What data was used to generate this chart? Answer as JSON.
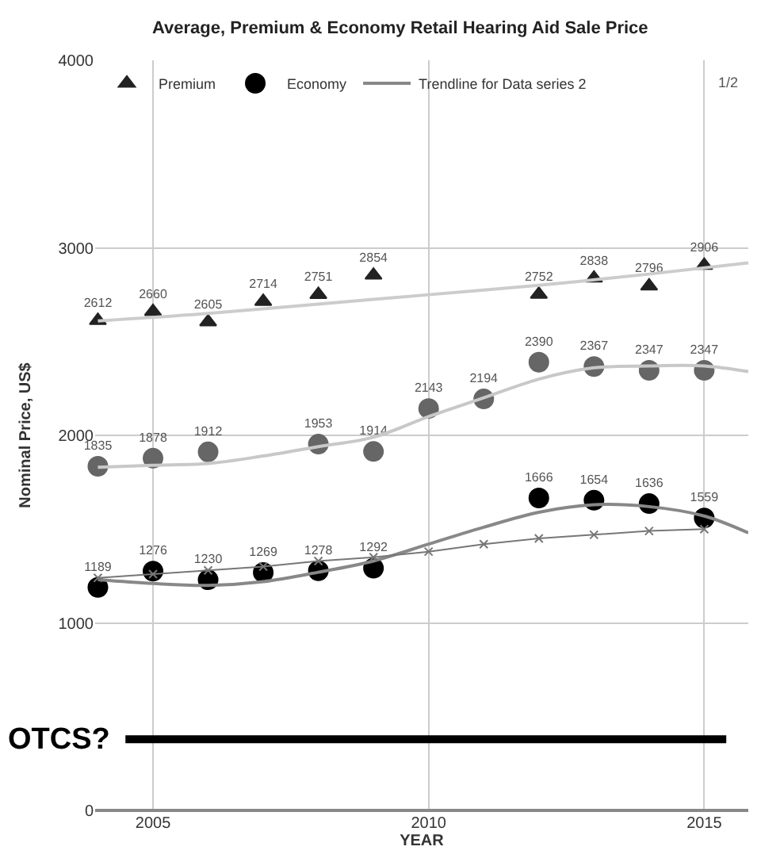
{
  "chart_data": {
    "type": "line",
    "title": "Average, Premium & Economy Retail Hearing Aid Sale Price",
    "xlabel": "YEAR",
    "ylabel": "Nominal Price, US$",
    "x": [
      2004,
      2005,
      2006,
      2007,
      2008,
      2009,
      2010,
      2011,
      2012,
      2013,
      2014,
      2015
    ],
    "series": [
      {
        "name": "Premium",
        "type": "scatter",
        "marker": "triangle",
        "color": "#222222",
        "values": [
          2612,
          2660,
          2605,
          2714,
          2751,
          2854,
          null,
          null,
          2752,
          2838,
          2796,
          2906
        ],
        "value_labels": [
          "2612",
          "2660",
          "2605",
          "2714",
          "2751",
          "2854",
          null,
          null,
          "2752",
          "2838",
          "2796",
          "2906"
        ]
      },
      {
        "name": "Economy",
        "type": "scatter",
        "marker": "circle",
        "color": "#000000",
        "values": [
          1189,
          1276,
          1230,
          1269,
          1278,
          1292,
          null,
          null,
          1666,
          1654,
          1636,
          1559
        ],
        "value_labels": [
          "1189",
          "1276",
          "1230",
          "1269",
          "1278",
          "1292",
          null,
          null,
          "1666",
          "1654",
          "1636",
          "1559"
        ]
      },
      {
        "type": "scatter",
        "marker": "circle",
        "color": "#666666",
        "values": [
          1835,
          1878,
          1912,
          null,
          1953,
          1914,
          2143,
          2194,
          2390,
          2367,
          2347,
          2347
        ],
        "value_labels": [
          "1835",
          "1878",
          "1912",
          null,
          "1953",
          "1914",
          "2143",
          "2194",
          "2390",
          "2367",
          "2347",
          "2347"
        ]
      },
      {
        "name": "Trendline for Data series 2",
        "marker": "none",
        "color": "#888888",
        "x": [
          2004,
          2005,
          2006,
          2007,
          2008,
          2009,
          2010,
          2011,
          2012,
          2013,
          2014,
          2015,
          2015.8
        ],
        "values": [
          1230,
          1210,
          1200,
          1220,
          1270,
          1330,
          1420,
          1510,
          1590,
          1630,
          1620,
          1570,
          1480
        ]
      },
      {
        "marker": "none",
        "color": "#cccccc",
        "x": [
          2004,
          2006,
          2008,
          2010,
          2012,
          2014,
          2015.8
        ],
        "values": [
          2610,
          2650,
          2700,
          2750,
          2800,
          2860,
          2920
        ]
      },
      {
        "marker": "none",
        "color": "#c8c8c8",
        "x": [
          2004,
          2005,
          2006,
          2007,
          2008,
          2009,
          2010,
          2011,
          2012,
          2013,
          2014,
          2015,
          2015.8
        ],
        "values": [
          1830,
          1840,
          1850,
          1890,
          1940,
          1990,
          2100,
          2200,
          2300,
          2360,
          2370,
          2370,
          2340
        ]
      },
      {
        "marker": "cross",
        "color": "#777777",
        "values": [
          1240,
          1260,
          1280,
          1300,
          1330,
          1350,
          1380,
          1420,
          1450,
          1470,
          1490,
          1500
        ]
      },
      {
        "name": "OTCS?",
        "marker": "none",
        "color": "#000000",
        "x": [
          2004.5,
          2015.4
        ],
        "values": [
          380,
          380
        ]
      }
    ],
    "xlim": [
      2003.95,
      2015.8
    ],
    "xticks": [
      2005,
      2010,
      2015
    ],
    "ylim": [
      0,
      4000
    ],
    "yticks": [
      0,
      1000,
      2000,
      3000,
      4000
    ],
    "grid": true,
    "legend": "top left",
    "annotations": [
      "1/2"
    ]
  }
}
